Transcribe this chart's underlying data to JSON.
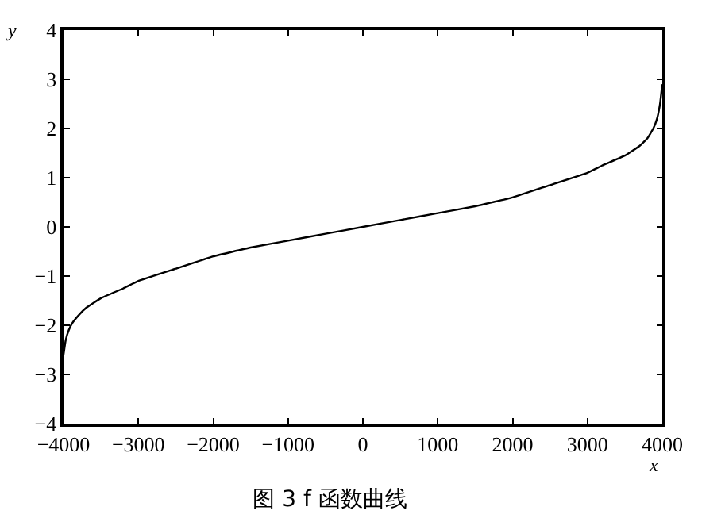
{
  "chart_data": {
    "type": "line",
    "title": "图 3 f 函数曲线",
    "xlabel": "x",
    "ylabel": "y",
    "x": [
      -4000,
      -3970,
      -3930,
      -3880,
      -3800,
      -3700,
      -3500,
      -3200,
      -3000,
      -2500,
      -2000,
      -1500,
      -1000,
      -500,
      0,
      500,
      1000,
      1500,
      2000,
      2500,
      3000,
      3200,
      3500,
      3700,
      3800,
      3880,
      3930,
      3970,
      4000
    ],
    "series": [
      {
        "color": "#000000",
        "values": [
          -2.6,
          -2.3,
          -2.1,
          -1.95,
          -1.8,
          -1.65,
          -1.45,
          -1.25,
          -1.1,
          -0.85,
          -0.6,
          -0.42,
          -0.28,
          -0.14,
          0,
          0.14,
          0.28,
          0.42,
          0.6,
          0.85,
          1.1,
          1.25,
          1.45,
          1.65,
          1.8,
          2.0,
          2.2,
          2.5,
          2.9
        ]
      }
    ],
    "xlim": [
      -4000,
      4000
    ],
    "xticks": [
      -4000,
      -3000,
      -2000,
      -1000,
      0,
      1000,
      2000,
      3000,
      4000
    ],
    "ylim": [
      -4,
      4
    ],
    "yticks": [
      -4,
      -3,
      -2,
      -1,
      0,
      1,
      2,
      3,
      4
    ],
    "legend": false,
    "marker": "none",
    "line_style": "solid"
  }
}
